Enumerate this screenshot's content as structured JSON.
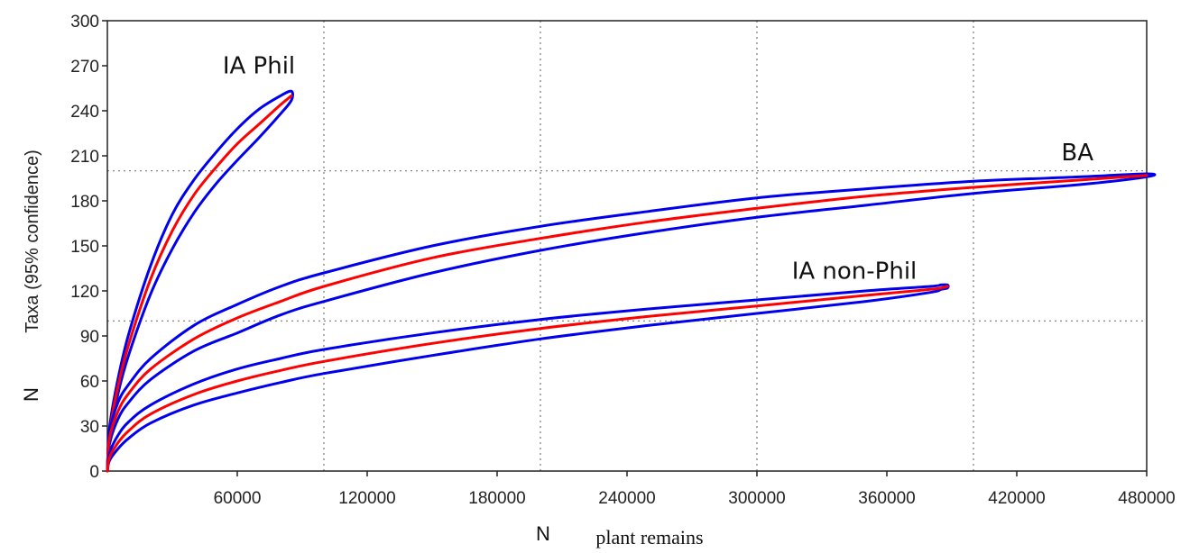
{
  "chart_data": {
    "type": "line",
    "xlabel_prefix": "N",
    "xlabel": "plant remains",
    "ylabel_prefix": "N",
    "ylabel": "Taxa (95% confidence)",
    "xlim": [
      0,
      480000
    ],
    "ylim": [
      0,
      300
    ],
    "x_ticks": [
      60000,
      120000,
      180000,
      240000,
      300000,
      360000,
      420000,
      480000
    ],
    "y_ticks": [
      0,
      30,
      60,
      90,
      120,
      150,
      180,
      210,
      240,
      270,
      300
    ],
    "vertical_reference_lines": [
      100000,
      200000,
      300000,
      400000
    ],
    "horizontal_reference_lines": [
      100,
      200
    ],
    "colors": {
      "expected": "#ff0000",
      "confidence": "#0000ee"
    },
    "annotations": [
      {
        "text": "IA Phil",
        "x": 70000,
        "y": 265
      },
      {
        "text": "BA",
        "x": 448000,
        "y": 207
      },
      {
        "text": "IA non-Phil",
        "x": 345000,
        "y": 128
      }
    ],
    "series": [
      {
        "label": "IA Phil",
        "x": [
          0,
          1000,
          5000,
          10000,
          20000,
          30000,
          40000,
          50000,
          60000,
          70000,
          80000,
          85000
        ],
        "mean": [
          0,
          25,
          57,
          85,
          128,
          160,
          184,
          202,
          218,
          231,
          244,
          250
        ],
        "upper": [
          0,
          29,
          62,
          92,
          137,
          171,
          194,
          212,
          228,
          241,
          250,
          253
        ],
        "lower": [
          0,
          21,
          52,
          78,
          118,
          148,
          172,
          191,
          207,
          222,
          238,
          247
        ]
      },
      {
        "label": "BA",
        "x": [
          0,
          1000,
          5000,
          10000,
          20000,
          40000,
          60000,
          80000,
          100000,
          150000,
          200000,
          250000,
          300000,
          350000,
          400000,
          450000,
          480000
        ],
        "mean": [
          0,
          22,
          40,
          52,
          68,
          88,
          102,
          113,
          123,
          142,
          155,
          166,
          175,
          183,
          189,
          194,
          197
        ],
        "upper": [
          0,
          26,
          46,
          58,
          75,
          97,
          111,
          123,
          132,
          150,
          163,
          173,
          182,
          188,
          193,
          196,
          198
        ],
        "lower": [
          0,
          18,
          35,
          46,
          61,
          80,
          92,
          104,
          113,
          132,
          147,
          159,
          169,
          177,
          185,
          191,
          196
        ]
      },
      {
        "label": "IA non-Phil",
        "x": [
          0,
          1000,
          5000,
          10000,
          20000,
          40000,
          60000,
          80000,
          100000,
          150000,
          200000,
          250000,
          300000,
          350000,
          380000,
          385000,
          388000
        ],
        "mean": [
          0,
          9,
          19,
          27,
          38,
          51,
          60,
          67,
          73,
          85,
          95,
          103,
          110,
          117,
          121,
          122,
          123
        ],
        "upper": [
          0,
          12,
          24,
          33,
          44,
          58,
          68,
          75,
          81,
          92,
          101,
          108,
          114,
          120,
          123,
          124,
          124
        ],
        "lower": [
          0,
          7,
          15,
          22,
          32,
          44,
          52,
          59,
          65,
          77,
          88,
          97,
          105,
          113,
          119,
          121,
          122
        ]
      }
    ]
  }
}
